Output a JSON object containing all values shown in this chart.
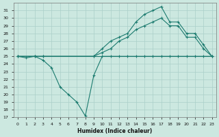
{
  "xlabel": "Humidex (Indice chaleur)",
  "background_color": "#cce8e0",
  "grid_color": "#aacfc8",
  "line_color": "#1a7a6e",
  "ylim": [
    17,
    32
  ],
  "xlim": [
    -0.5,
    23.5
  ],
  "yticks": [
    17,
    18,
    19,
    20,
    21,
    22,
    23,
    24,
    25,
    26,
    27,
    28,
    29,
    30,
    31
  ],
  "xticks": [
    0,
    1,
    2,
    3,
    4,
    5,
    6,
    7,
    8,
    9,
    10,
    11,
    12,
    13,
    14,
    15,
    16,
    17,
    18,
    19,
    20,
    21,
    22,
    23
  ],
  "series": [
    {
      "x": [
        0,
        23
      ],
      "y": [
        25,
        25
      ],
      "marker": false,
      "linewidth": 0.8
    },
    {
      "x": [
        0,
        1,
        2,
        3,
        4,
        5,
        6,
        7,
        8,
        9,
        10,
        11,
        12,
        13,
        14,
        15,
        16,
        17,
        18,
        19,
        20,
        21,
        22,
        23
      ],
      "y": [
        25,
        24.8,
        25,
        24.5,
        23.5,
        21.0,
        20.0,
        19.0,
        17.2,
        22.5,
        25.0,
        25.0,
        25.0,
        25.0,
        25.0,
        25.0,
        25.0,
        25.0,
        25.0,
        25.0,
        25.0,
        25.0,
        25.0,
        25.0
      ],
      "marker": true,
      "linewidth": 0.8
    },
    {
      "x": [
        0,
        2,
        3,
        9,
        10,
        11,
        12,
        13,
        14,
        15,
        16,
        17,
        18,
        19,
        20,
        21,
        22,
        23
      ],
      "y": [
        25,
        25,
        25,
        25,
        25.5,
        26.0,
        27.0,
        27.5,
        28.5,
        29.0,
        29.5,
        30.0,
        29.0,
        29.0,
        27.5,
        27.5,
        26.0,
        25.0
      ],
      "marker": true,
      "linewidth": 0.8
    },
    {
      "x": [
        0,
        2,
        3,
        9,
        10,
        11,
        12,
        13,
        14,
        15,
        16,
        17,
        18,
        19,
        20,
        21,
        22,
        23
      ],
      "y": [
        25,
        25,
        25,
        25,
        26.0,
        27.0,
        27.5,
        28.0,
        29.5,
        30.5,
        31.0,
        31.5,
        29.5,
        29.5,
        28.0,
        28.0,
        26.5,
        25.0
      ],
      "marker": true,
      "linewidth": 0.8
    }
  ]
}
